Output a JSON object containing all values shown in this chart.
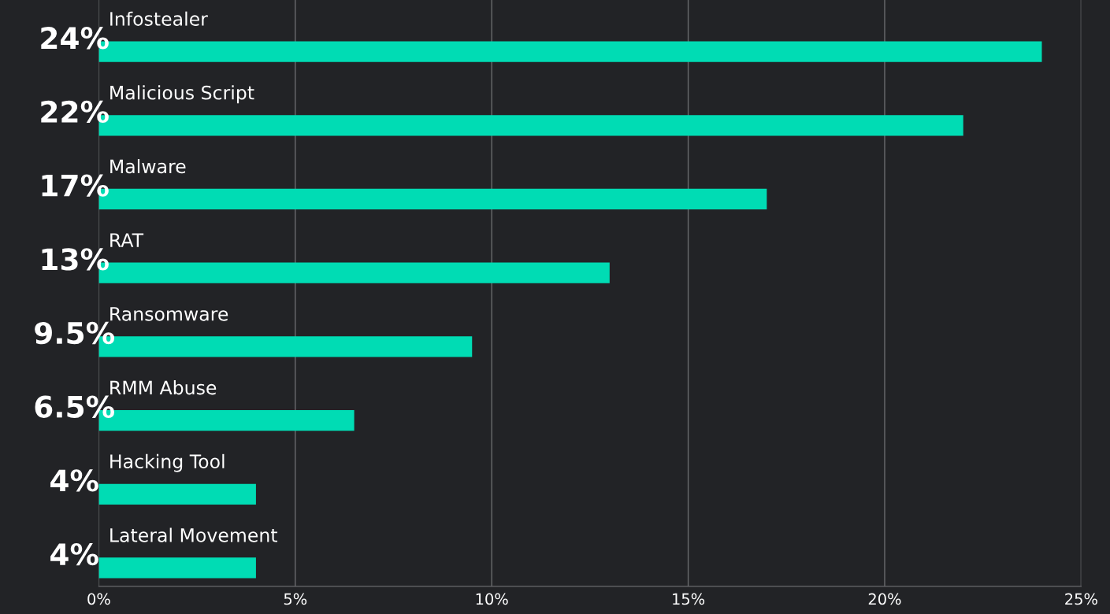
{
  "chart_data": {
    "type": "bar",
    "orientation": "horizontal",
    "categories": [
      "Infostealer",
      "Malicious Script",
      "Malware",
      "RAT",
      "Ransomware",
      "RMM Abuse",
      "Hacking Tool",
      "Lateral Movement"
    ],
    "values": [
      24,
      22,
      17,
      13,
      9.5,
      6.5,
      4,
      4
    ],
    "value_labels": [
      "24%",
      "22%",
      "17%",
      "13%",
      "9.5%",
      "6.5%",
      "4%",
      "4%"
    ],
    "color": "#00dcb4",
    "xlim": [
      0,
      25
    ],
    "xticks": [
      {
        "value": 0,
        "label": "0%"
      },
      {
        "value": 5,
        "label": "5%"
      },
      {
        "value": 10,
        "label": "10%"
      },
      {
        "value": 15,
        "label": "15%"
      },
      {
        "value": 20,
        "label": "20%"
      },
      {
        "value": 25,
        "label": "25%"
      }
    ],
    "grid": "x",
    "legend": false
  }
}
